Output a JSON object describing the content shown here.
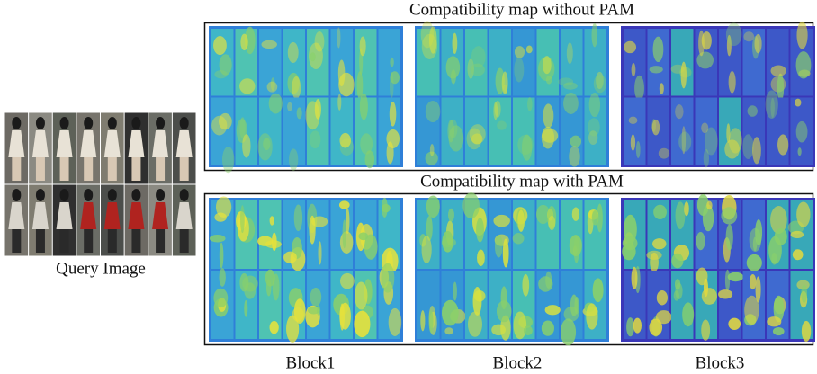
{
  "figure": {
    "top_title": "Compatibility map without PAM",
    "bottom_title": "Compatibility map with PAM",
    "query_label": "Query Image",
    "block_labels": [
      "Block1",
      "Block2",
      "Block3"
    ]
  }
}
